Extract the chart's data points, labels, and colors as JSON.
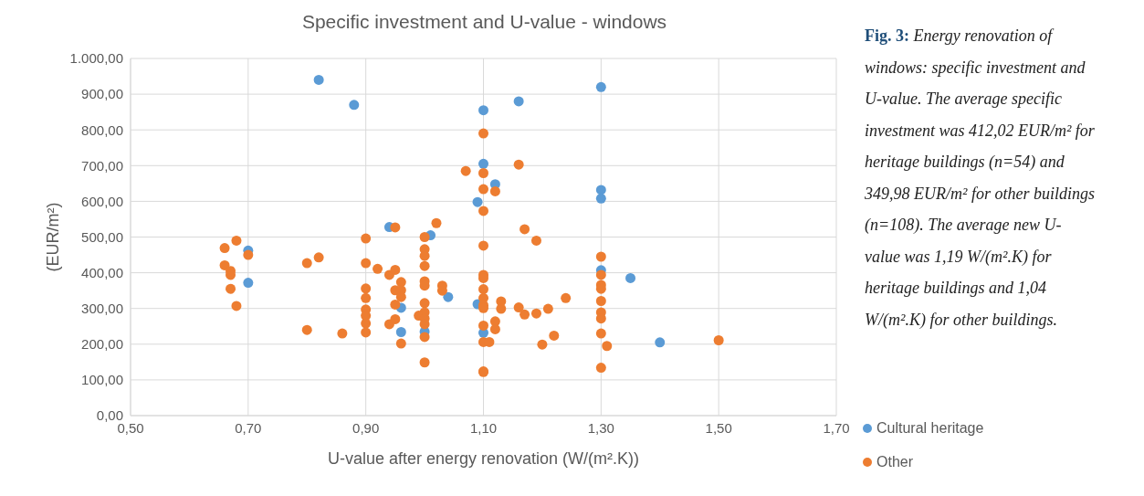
{
  "chart_data": {
    "type": "scatter",
    "title": "Specific investment and U-value - windows",
    "xlabel": "U-value after energy renovation (W/(m².K))",
    "ylabel": "(EUR/m²)",
    "annotations": [
      "Fig. 3:",
      "Energy renovation of windows: specific investment and U-value. The average specific investment was 412,02 EUR/m² for heritage buildings (n=54) and 349,98 EUR/m² for other buildings (n=108). The average new U-value was 1,19 W/(m².K) for heritage buildings and 1,04 W/(m².K) for other buildings."
    ],
    "xlim": [
      0.5,
      1.7
    ],
    "xticks": [
      {
        "value": 0.5,
        "label": "0,50"
      },
      {
        "value": 0.7,
        "label": "0,70"
      },
      {
        "value": 0.9,
        "label": "0,90"
      },
      {
        "value": 1.1,
        "label": "1,10"
      },
      {
        "value": 1.3,
        "label": "1,30"
      },
      {
        "value": 1.5,
        "label": "1,50"
      },
      {
        "value": 1.7,
        "label": "1,70"
      }
    ],
    "ylim": [
      0,
      1000
    ],
    "yticks": [
      {
        "value": 0,
        "label": "0,00"
      },
      {
        "value": 100,
        "label": "100,00"
      },
      {
        "value": 200,
        "label": "200,00"
      },
      {
        "value": 300,
        "label": "300,00"
      },
      {
        "value": 400,
        "label": "400,00"
      },
      {
        "value": 500,
        "label": "500,00"
      },
      {
        "value": 600,
        "label": "600,00"
      },
      {
        "value": 700,
        "label": "700,00"
      },
      {
        "value": 800,
        "label": "800,00"
      },
      {
        "value": 900,
        "label": "900,00"
      },
      {
        "value": 1000,
        "label": "1.000,00"
      }
    ],
    "grid": true,
    "legend": "bottom right",
    "marker": "circle",
    "series": [
      {
        "name": "Cultural heritage",
        "color": "#5b9bd5",
        "x": [
          0.82,
          0.88,
          1.1,
          1.16,
          1.3,
          1.1,
          1.12,
          1.09,
          1.3,
          1.3,
          0.94,
          1.01,
          0.7,
          0.7,
          1.04,
          0.96,
          0.96,
          1.0,
          1.09,
          1.1,
          1.3,
          1.35,
          1.4
        ],
        "values": [
          940,
          870,
          855,
          880,
          920,
          705,
          648,
          598,
          632,
          608,
          528,
          505,
          462,
          372,
          332,
          302,
          234,
          235,
          312,
          232,
          407,
          385,
          205
        ]
      },
      {
        "name": "Other",
        "color": "#ed7d31",
        "x": [
          1.07,
          0.9,
          0.95,
          1.0,
          1.02,
          0.68,
          1.1,
          1.16,
          1.1,
          1.1,
          1.12,
          1.1,
          1.17,
          1.19,
          0.66,
          0.7,
          0.66,
          0.67,
          0.67,
          0.67,
          0.68,
          0.8,
          0.82,
          0.8,
          0.86,
          0.9,
          0.9,
          0.9,
          0.9,
          0.9,
          0.9,
          0.9,
          0.92,
          0.94,
          0.95,
          0.96,
          0.95,
          0.96,
          0.96,
          0.95,
          0.94,
          0.95,
          0.96,
          1.0,
          1.0,
          1.0,
          1.0,
          1.0,
          1.0,
          1.0,
          0.99,
          1.0,
          1.0,
          1.0,
          1.0,
          1.03,
          1.03,
          1.1,
          1.1,
          1.1,
          1.1,
          1.1,
          1.1,
          1.1,
          1.13,
          1.13,
          1.16,
          1.17,
          1.19,
          1.21,
          1.24,
          1.12,
          1.12,
          1.1,
          1.1,
          1.11,
          1.2,
          1.22,
          1.1,
          1.1,
          1.3,
          1.3,
          1.3,
          1.3,
          1.3,
          1.3,
          1.3,
          1.3,
          1.31,
          1.3,
          1.5
        ],
        "values": [
          685,
          496,
          527,
          500,
          539,
          490,
          790,
          703,
          679,
          634,
          628,
          573,
          522,
          490,
          469,
          450,
          421,
          405,
          394,
          355,
          307,
          427,
          443,
          240,
          230,
          427,
          356,
          329,
          297,
          280,
          258,
          233,
          411,
          394,
          408,
          374,
          351,
          351,
          332,
          311,
          256,
          270,
          202,
          466,
          447,
          419,
          376,
          364,
          315,
          289,
          280,
          272,
          256,
          220,
          149,
          364,
          350,
          476,
          394,
          385,
          354,
          329,
          309,
          301,
          320,
          299,
          303,
          283,
          286,
          299,
          329,
          264,
          242,
          252,
          206,
          206,
          199,
          224,
          124,
          122,
          445,
          394,
          366,
          355,
          321,
          289,
          272,
          230,
          195,
          134,
          211
        ]
      }
    ]
  }
}
